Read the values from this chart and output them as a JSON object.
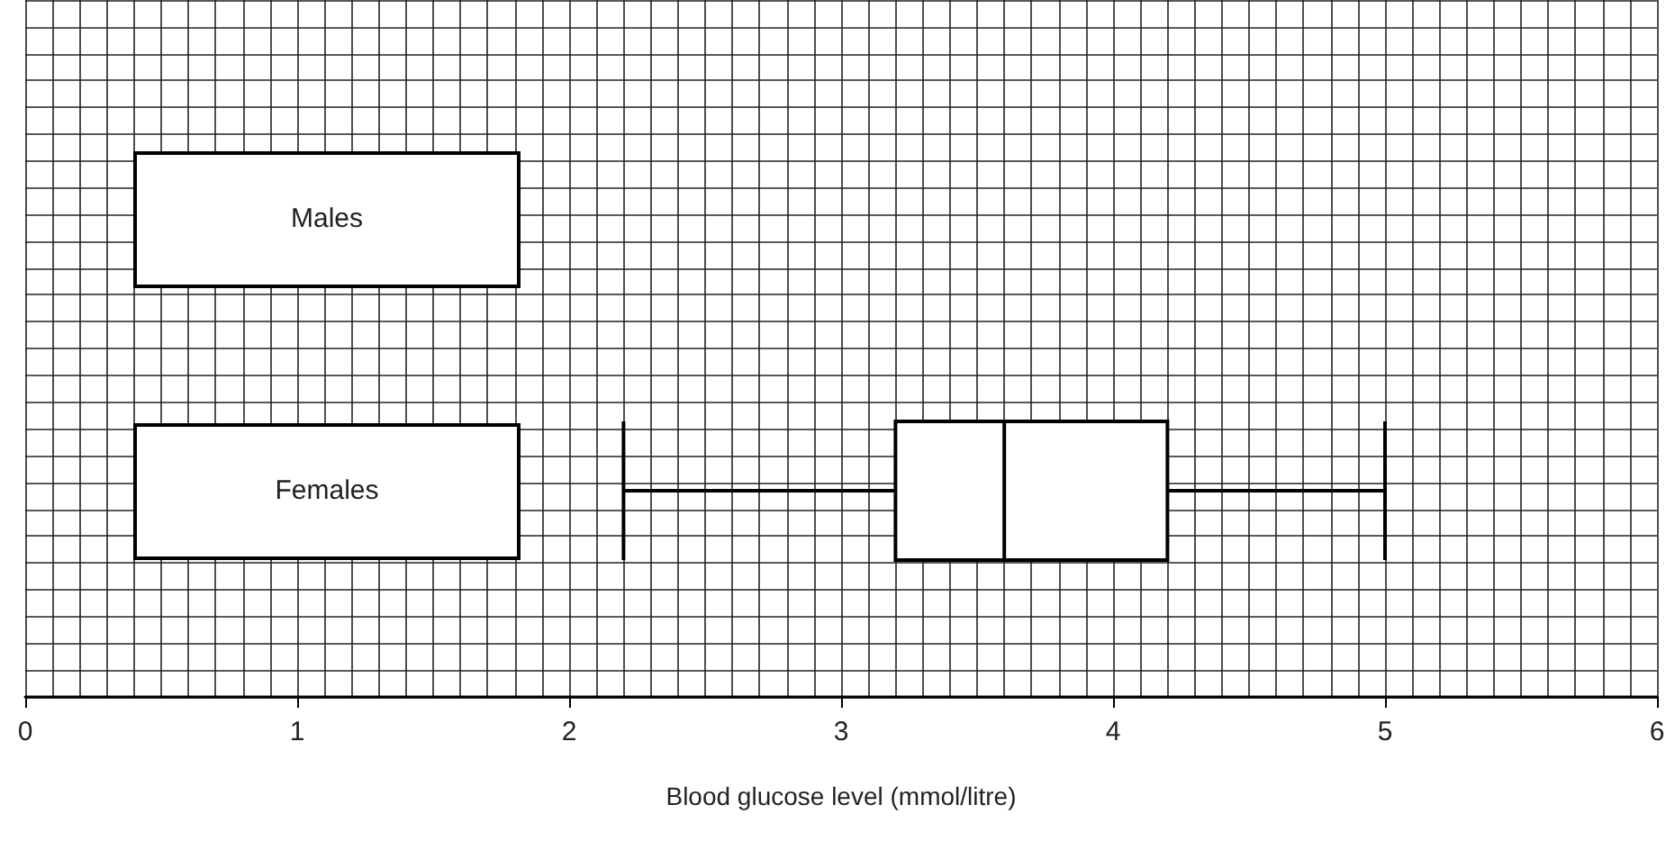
{
  "chart_data": {
    "type": "box",
    "orientation": "horizontal",
    "categories": [
      "Males",
      "Females"
    ],
    "boxes": [
      null,
      {
        "low": 2.2,
        "q1": 3.2,
        "median": 3.6,
        "q3": 4.2,
        "high": 5.0
      }
    ],
    "color": "#000000",
    "xlabel": "Blood glucose level (mmol/litre)",
    "xlim": [
      0,
      6
    ],
    "xticks": [
      0,
      1,
      2,
      3,
      4,
      5,
      6
    ],
    "grid": true
  }
}
